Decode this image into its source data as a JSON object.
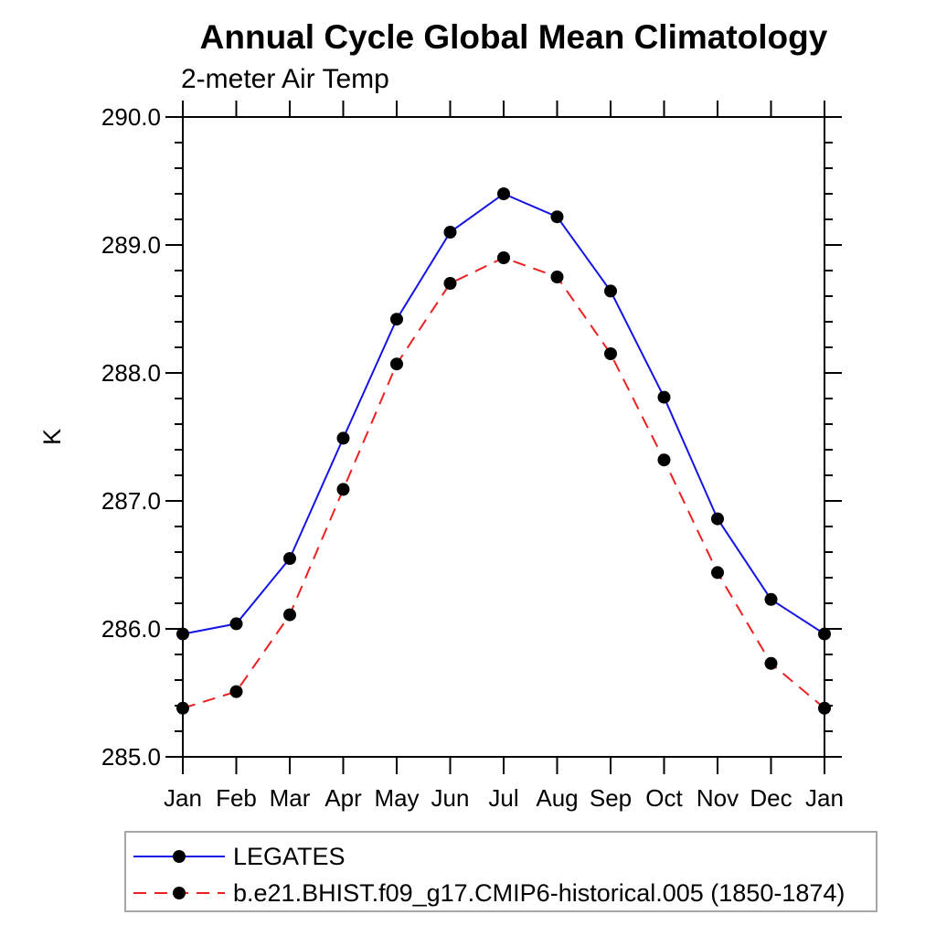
{
  "chart_data": {
    "type": "line",
    "title": "Annual Cycle Global Mean Climatology",
    "subtitle": "2-meter Air Temp",
    "ylabel": "K",
    "ylim": [
      285.0,
      290.0
    ],
    "ytick_step": 1.0,
    "ytick_minor_step": 0.2,
    "ytick_label_format": "one_decimal",
    "grid": false,
    "legend_position": "bottom-left",
    "categories": [
      "Jan",
      "Feb",
      "Mar",
      "Apr",
      "May",
      "Jun",
      "Jul",
      "Aug",
      "Sep",
      "Oct",
      "Nov",
      "Dec",
      "Jan"
    ],
    "series": [
      {
        "name": "LEGATES",
        "color": "#1414e6",
        "line_style": "solid",
        "marker": "circle",
        "marker_color": "#000000",
        "values": [
          285.96,
          286.04,
          286.55,
          287.49,
          288.42,
          289.1,
          289.4,
          289.22,
          288.64,
          287.81,
          286.86,
          286.23,
          285.96
        ]
      },
      {
        "name": "b.e21.BHIST.f09_g17.CMIP6-historical.005 (1850-1874)",
        "color": "#ec2020",
        "line_style": "dashed",
        "marker": "circle",
        "marker_color": "#000000",
        "values": [
          285.38,
          285.51,
          286.11,
          287.09,
          288.07,
          288.7,
          288.9,
          288.75,
          288.15,
          287.32,
          286.44,
          285.73,
          285.38
        ]
      }
    ],
    "axis_color": "#000000"
  }
}
